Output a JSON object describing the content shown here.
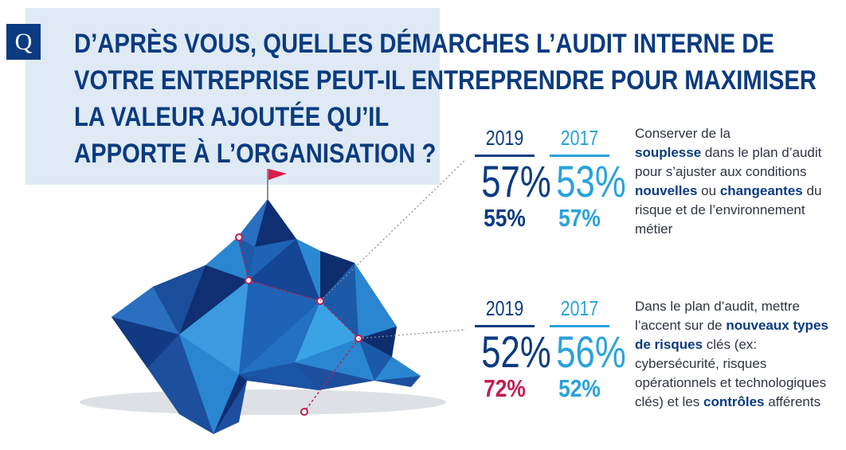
{
  "badge": "Q",
  "question": {
    "line1": "D’APRÈS VOUS, QUELLES DÉMARCHES L’AUDIT INTERNE DE",
    "line2": "VOTRE ENTREPRISE PEUT-IL ENTREPRENDRE POUR MAXIMISER",
    "line3": "LA VALEUR AJOUTÉE QU’IL",
    "line4": "APPORTE À L’ORGANISATION ?"
  },
  "stats": [
    {
      "col2019": {
        "year": "2019",
        "big": "57%",
        "small": "55%"
      },
      "col2017": {
        "year": "2017",
        "big": "53%",
        "small": "57%"
      },
      "desc": {
        "t1": "Conserver de la",
        "b1": "souplesse",
        "t2": "dans le plan d’audit pour s’ajuster aux conditions",
        "b2": "nouvelles",
        "t3": "ou",
        "b3": "changeantes",
        "t4": "du risque et de l’environnement métier"
      }
    },
    {
      "col2019": {
        "year": "2019",
        "big": "52%",
        "small": "72%"
      },
      "col2017": {
        "year": "2017",
        "big": "56%",
        "small": "52%"
      },
      "desc": {
        "t1": "Dans le plan d’audit, mettre l’accent sur de",
        "b1": "nouveaux types de risques",
        "t2": "clés (ex: cybersécurité, risques opérationnels et technologiques clés) et les",
        "b2": "contrôles",
        "t3": "afférents"
      }
    }
  ],
  "colors": {
    "dark": "#0a3b80",
    "light": "#2aa2dc",
    "red": "#c31e4e",
    "panel": "#dfeaf5"
  }
}
